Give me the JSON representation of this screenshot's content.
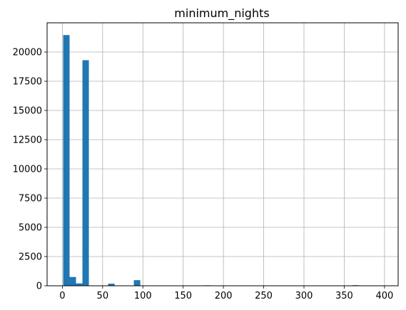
{
  "chart_data": {
    "type": "bar",
    "title": "minimum_nights",
    "xlabel": "",
    "ylabel": "",
    "grid": true,
    "bar_color": "#1f77b4",
    "xlim": [
      -18.95,
      416.95
    ],
    "ylim": [
      0,
      22500
    ],
    "xticks": [
      0,
      50,
      100,
      150,
      200,
      250,
      300,
      350,
      400
    ],
    "yticks": [
      0,
      2500,
      5000,
      7500,
      10000,
      12500,
      15000,
      17500,
      20000
    ],
    "bins": [
      {
        "x0": 1.0,
        "x1": 8.98,
        "count": 21450
      },
      {
        "x0": 8.98,
        "x1": 16.96,
        "count": 750
      },
      {
        "x0": 16.96,
        "x1": 24.94,
        "count": 200
      },
      {
        "x0": 24.94,
        "x1": 32.92,
        "count": 19300
      },
      {
        "x0": 56.86,
        "x1": 64.84,
        "count": 180
      },
      {
        "x0": 88.78,
        "x1": 96.76,
        "count": 480
      },
      {
        "x0": 176.56,
        "x1": 184.54,
        "count": 40
      },
      {
        "x0": 360.12,
        "x1": 368.1,
        "count": 50
      }
    ]
  }
}
